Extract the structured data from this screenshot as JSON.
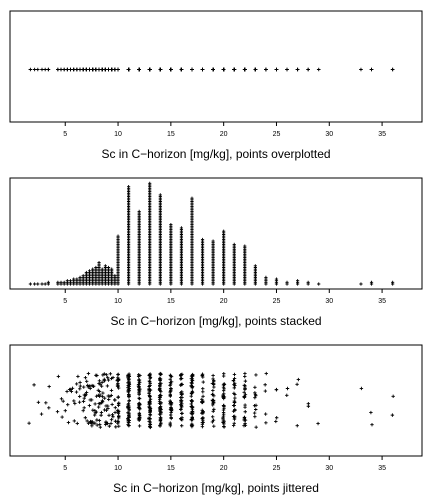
{
  "chart_data": [
    {
      "type": "scatter",
      "method": "overplot",
      "xlabel": "Sc in C−horizon [mg/kg], points overplotted",
      "xlim": [
        1,
        37
      ],
      "xticks": [
        5,
        10,
        15,
        20,
        25,
        30,
        35
      ],
      "ytick_labels": false,
      "marker": "+"
    },
    {
      "type": "scatter",
      "method": "stack",
      "xlabel": "Sc in C−horizon [mg/kg], points stacked",
      "xlim": [
        1,
        37
      ],
      "xticks": [
        5,
        10,
        15,
        20,
        25,
        30,
        35
      ],
      "ytick_labels": false,
      "marker": "+"
    },
    {
      "type": "scatter",
      "method": "jitter",
      "xlabel": "Sc in C−horizon [mg/kg], points jittered",
      "xlim": [
        1,
        37
      ],
      "xticks": [
        5,
        10,
        15,
        20,
        25,
        30,
        35
      ],
      "ytick_labels": false,
      "marker": "+"
    }
  ],
  "sc_values": {
    "counts": [
      [
        1.7,
        1
      ],
      [
        2.1,
        1
      ],
      [
        2.4,
        1
      ],
      [
        2.8,
        1
      ],
      [
        3.1,
        1
      ],
      [
        3.4,
        2
      ],
      [
        4.3,
        2
      ],
      [
        4.6,
        2
      ],
      [
        4.9,
        2
      ],
      [
        5.2,
        3
      ],
      [
        5.5,
        3
      ],
      [
        5.8,
        4
      ],
      [
        6.1,
        4
      ],
      [
        6.4,
        5
      ],
      [
        6.7,
        6
      ],
      [
        7.0,
        8
      ],
      [
        7.3,
        9
      ],
      [
        7.6,
        10
      ],
      [
        7.9,
        11
      ],
      [
        8.2,
        14
      ],
      [
        8.5,
        10
      ],
      [
        8.8,
        12
      ],
      [
        9.1,
        11
      ],
      [
        9.4,
        10
      ],
      [
        9.7,
        6
      ],
      [
        10,
        30
      ],
      [
        11,
        60
      ],
      [
        12,
        45
      ],
      [
        13,
        62
      ],
      [
        14,
        55
      ],
      [
        15,
        37
      ],
      [
        16,
        35
      ],
      [
        17,
        53
      ],
      [
        18,
        28
      ],
      [
        19,
        27
      ],
      [
        20,
        33
      ],
      [
        21,
        25
      ],
      [
        22,
        24
      ],
      [
        23,
        12
      ],
      [
        24,
        5
      ],
      [
        25,
        4
      ],
      [
        26,
        2
      ],
      [
        27,
        3
      ],
      [
        28,
        2
      ],
      [
        29,
        1
      ],
      [
        33,
        1
      ],
      [
        34,
        2
      ],
      [
        36,
        2
      ]
    ]
  }
}
